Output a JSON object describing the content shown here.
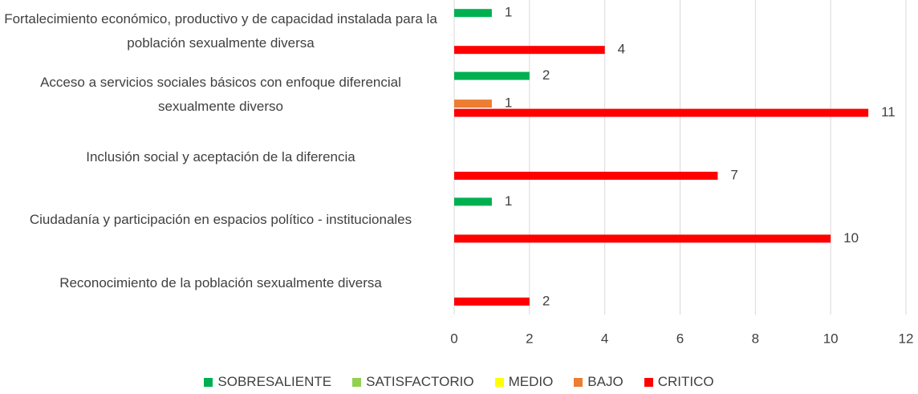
{
  "chart_data": {
    "type": "bar",
    "orientation": "horizontal",
    "categories": [
      "Fortalecimiento económico, productivo y de capacidad instalada para la población sexualmente diversa",
      "Acceso a servicios sociales básicos con enfoque diferencial sexualmente diverso",
      "Inclusión social y aceptación de la diferencia",
      "Ciudadanía y participación en espacios político - institucionales",
      "Reconocimiento de la población sexualmente diversa"
    ],
    "series": [
      {
        "name": "SOBRESALIENTE",
        "color": "#00b050",
        "values": [
          1,
          2,
          null,
          1,
          null
        ]
      },
      {
        "name": "SATISFACTORIO",
        "color": "#92d050",
        "values": [
          null,
          null,
          null,
          null,
          null
        ]
      },
      {
        "name": "MEDIO",
        "color": "#ffff00",
        "values": [
          null,
          null,
          null,
          null,
          null
        ]
      },
      {
        "name": "BAJO",
        "color": "#ed7d31",
        "values": [
          null,
          1,
          null,
          null,
          null
        ]
      },
      {
        "name": "CRITICO",
        "color": "#ff0000",
        "values": [
          4,
          11,
          7,
          10,
          2
        ]
      }
    ],
    "xlim": [
      0,
      12
    ],
    "xticks": [
      0,
      2,
      4,
      6,
      8,
      10,
      12
    ],
    "grid": true,
    "legend": "bottom"
  }
}
